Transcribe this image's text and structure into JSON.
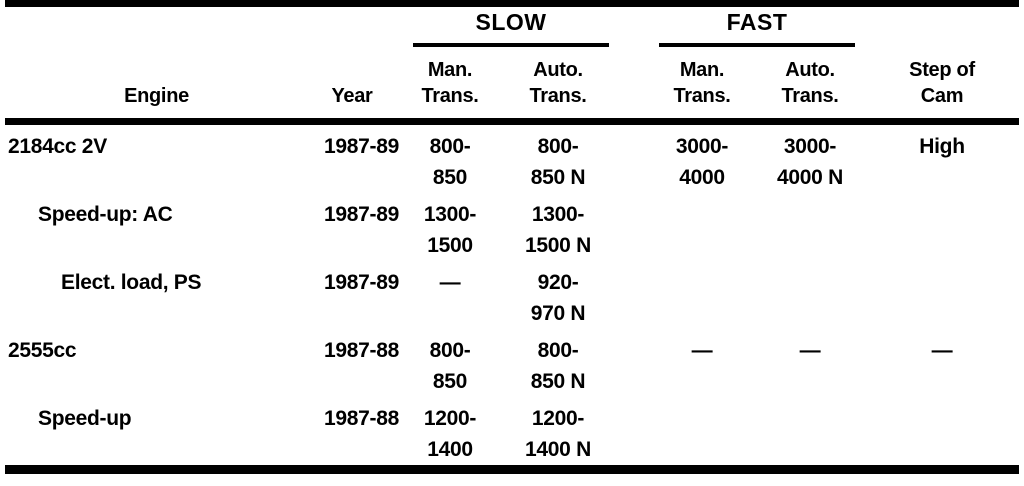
{
  "page": {
    "background": "#ffffff",
    "ink": "#000000"
  },
  "table": {
    "group_headers": {
      "slow": "SLOW",
      "fast": "FAST"
    },
    "columns": {
      "engine": "Engine",
      "year": "Year",
      "slow_man": "Man.\nTrans.",
      "slow_auto": "Auto.\nTrans.",
      "fast_man": "Man.\nTrans.",
      "fast_auto": "Auto.\nTrans.",
      "step_of_cam": "Step of\nCam"
    },
    "rows": [
      {
        "engine": "2184cc 2V",
        "indent": 0,
        "year": "1987-89",
        "slow_man": [
          "800-",
          "850"
        ],
        "slow_auto": [
          "800-",
          "850 N"
        ],
        "fast_man": [
          "3000-",
          "4000"
        ],
        "fast_auto": [
          "3000-",
          "4000 N"
        ],
        "step_of_cam": "High"
      },
      {
        "engine": "Speed-up: AC",
        "indent": 1,
        "year": "1987-89",
        "slow_man": [
          "1300-",
          "1500"
        ],
        "slow_auto": [
          "1300-",
          "1500 N"
        ],
        "fast_man": [],
        "fast_auto": [],
        "step_of_cam": ""
      },
      {
        "engine": "Elect. load, PS",
        "indent": 2,
        "year": "1987-89",
        "slow_man": [
          "—"
        ],
        "slow_auto": [
          "920-",
          "970 N"
        ],
        "fast_man": [],
        "fast_auto": [],
        "step_of_cam": ""
      },
      {
        "engine": "2555cc",
        "indent": 0,
        "year": "1987-88",
        "slow_man": [
          "800-",
          "850"
        ],
        "slow_auto": [
          "800-",
          "850 N"
        ],
        "fast_man": [
          "—"
        ],
        "fast_auto": [
          "—"
        ],
        "step_of_cam": "—"
      },
      {
        "engine": "Speed-up",
        "indent": 1,
        "year": "1987-88",
        "slow_man": [
          "1200-",
          "1400"
        ],
        "slow_auto": [
          "1200-",
          "1400 N"
        ],
        "fast_man": [],
        "fast_auto": [],
        "step_of_cam": ""
      }
    ]
  }
}
